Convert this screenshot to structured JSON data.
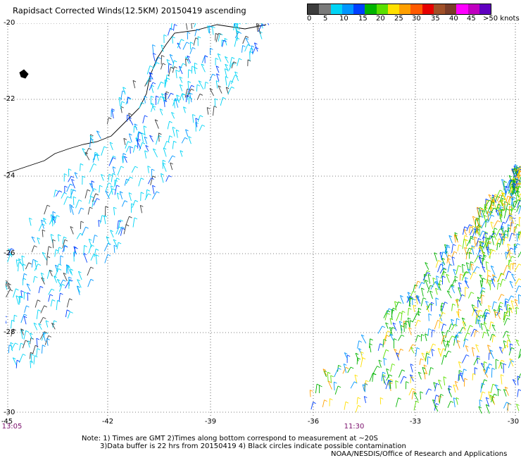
{
  "title": "Rapidsact Corrected Winds(12.5KM) 20150419 ascending",
  "legend": {
    "labels": [
      "0",
      "5",
      "10",
      "15",
      "20",
      "25",
      "30",
      "35",
      "40",
      "45",
      ">50 knots"
    ],
    "colors": [
      "#3c3c3c",
      "#7a7a7a",
      "#00d4f5",
      "#0096ff",
      "#0040ff",
      "#00b400",
      "#5ae000",
      "#ffe000",
      "#ffa000",
      "#ff5a00",
      "#e60000",
      "#a05028",
      "#7a3c28",
      "#ff00ff",
      "#c000c0",
      "#6000c0"
    ]
  },
  "axes": {
    "lat_labels": [
      "-20",
      "-22",
      "-24",
      "-26",
      "-28",
      "-30"
    ],
    "lon_labels": [
      "-45",
      "-42",
      "-39",
      "-36",
      "-33",
      "-30"
    ]
  },
  "time_labels": [
    "13:05",
    "11:30"
  ],
  "notes": {
    "line1": "Note: 1) Times are GMT 2)Times along bottom correspond to measurement at ~20S",
    "line2": "3)Data buffer is 22 hrs from 20150419 4) Black circles indicate possible contamination"
  },
  "credit": "NOAA/NESDIS/Office of Research and Applications"
}
